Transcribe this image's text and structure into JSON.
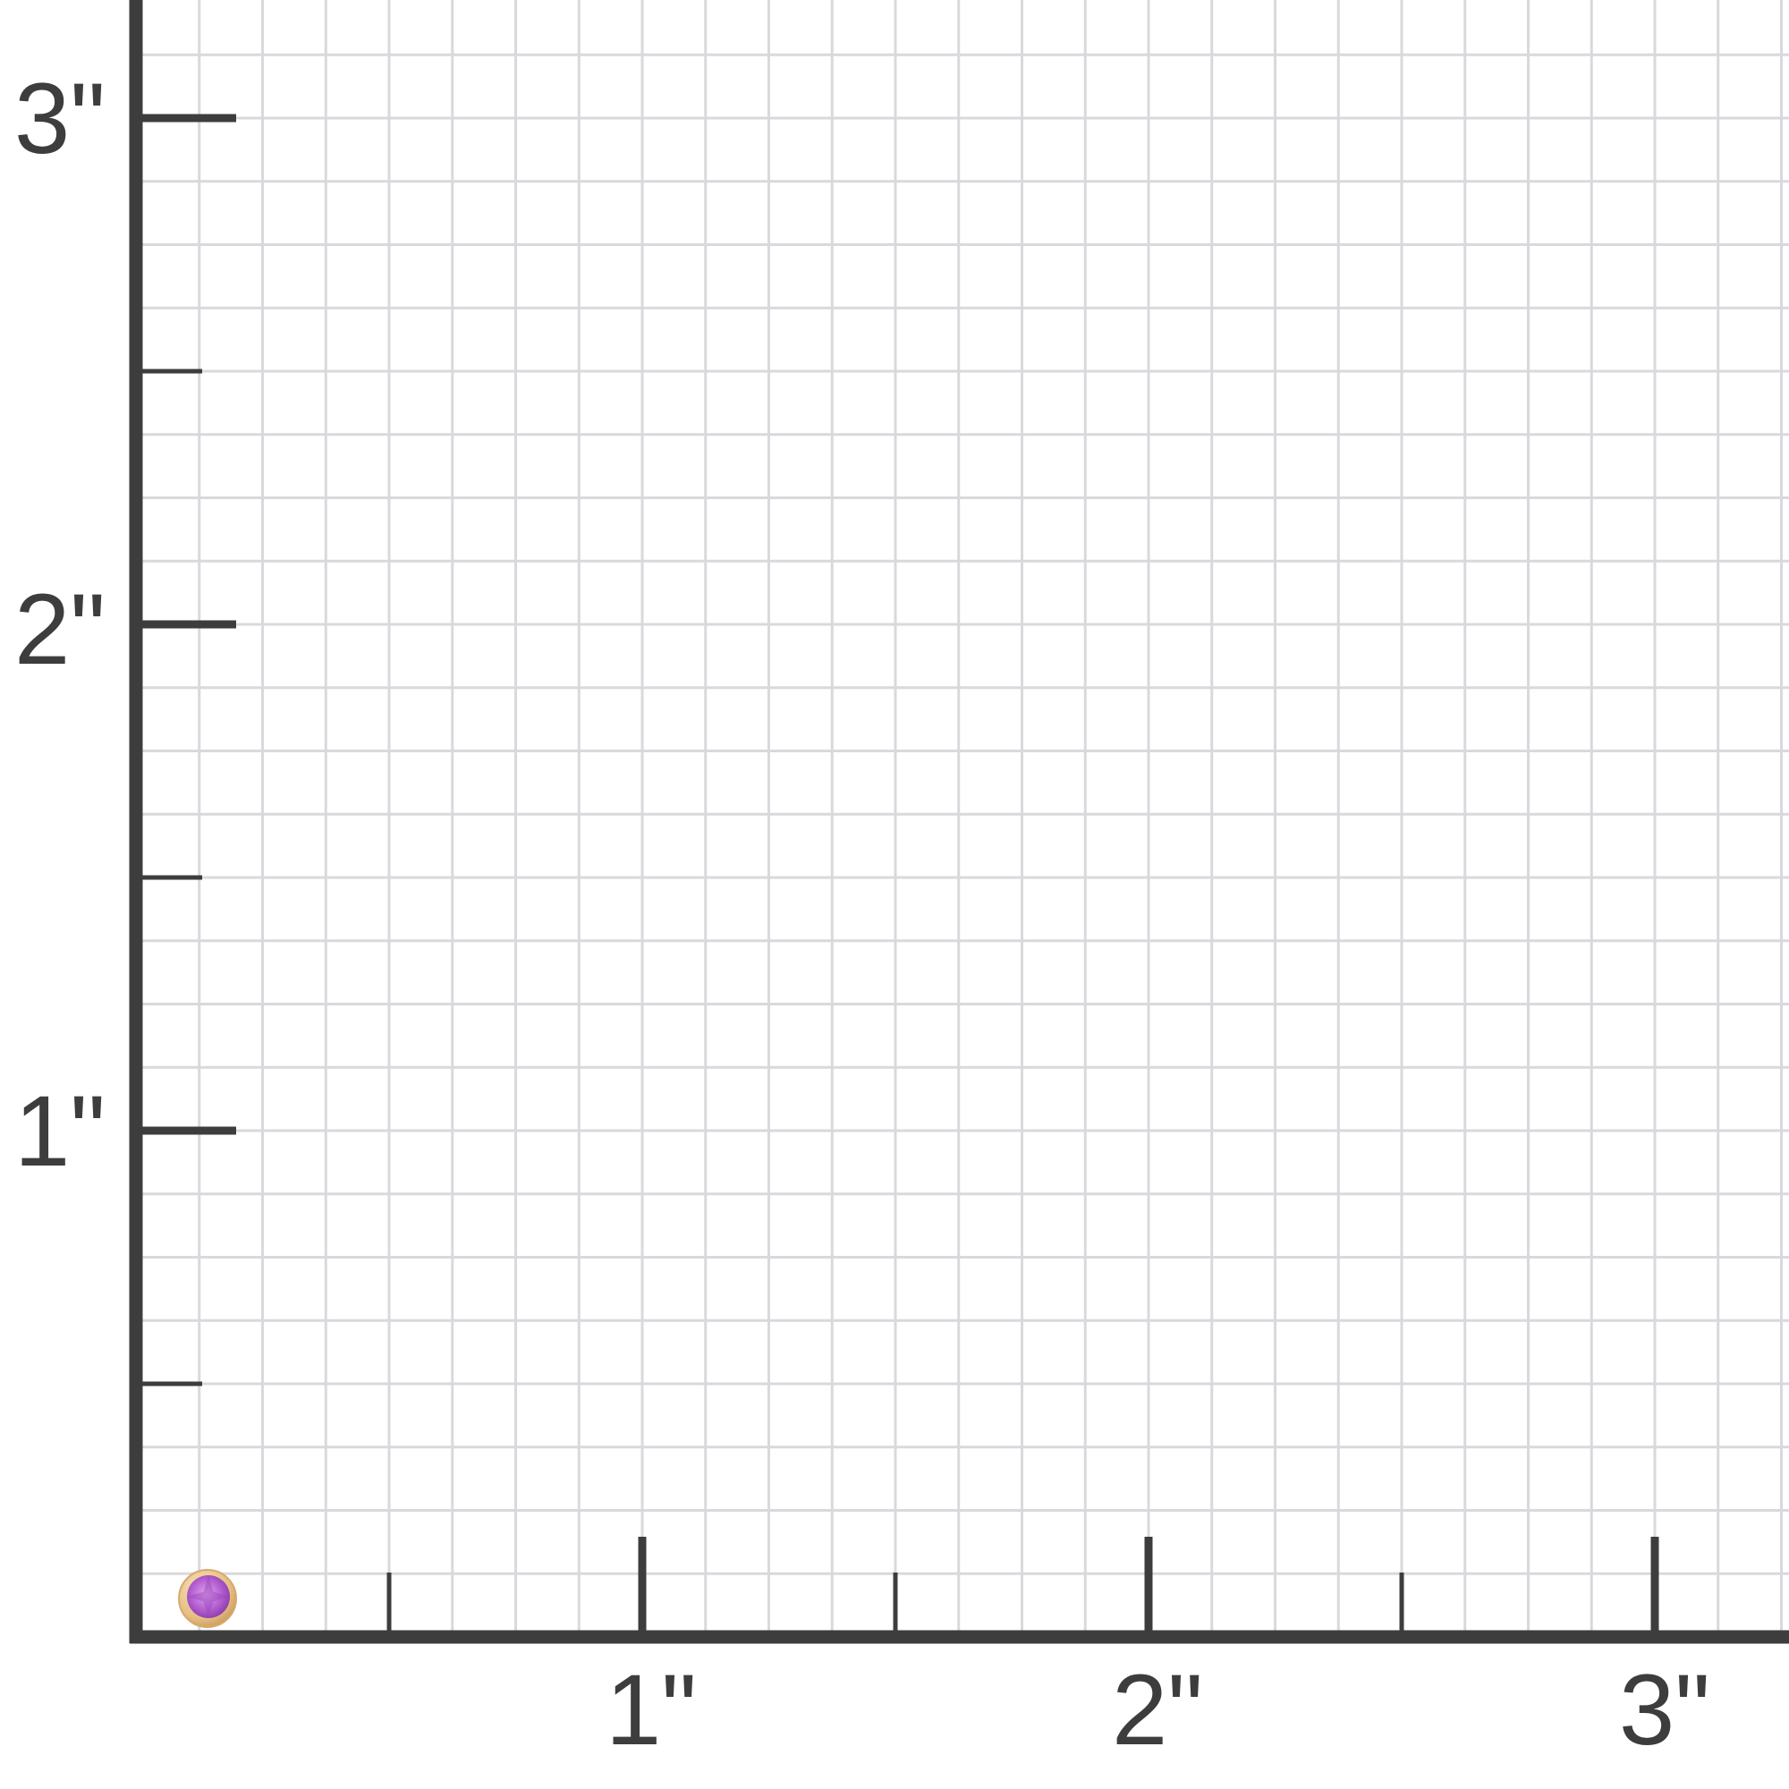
{
  "chart_data": {
    "type": "size-grid",
    "unit": "inch",
    "x_ticks": [
      "1\"",
      "2\"",
      "3\""
    ],
    "y_ticks": [
      "1\"",
      "2\"",
      "3\""
    ],
    "grid": true,
    "grid_subdivisions_per_inch": 8,
    "item": {
      "name": "bezel-set gemstone stud",
      "diameter_in": 0.11,
      "metal_color": "#e8c48a",
      "gem_color": "#c070d8"
    }
  },
  "colors": {
    "axis": "#3d3d3d",
    "grid": "#d9d9dd",
    "background": "#ffffff"
  }
}
